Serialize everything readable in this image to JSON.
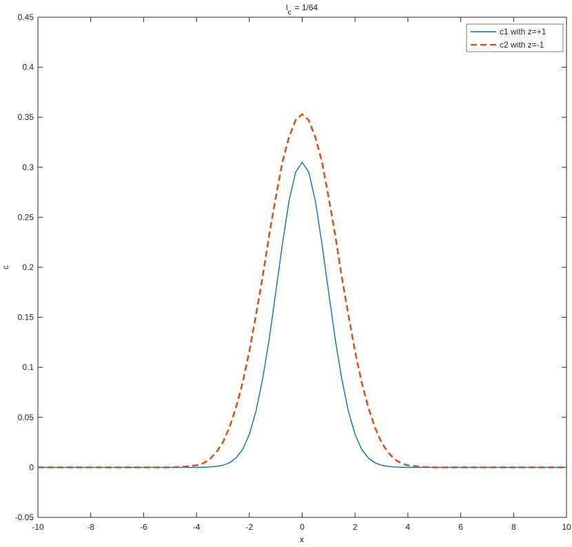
{
  "chart_data": {
    "type": "line",
    "title": {
      "text": "l",
      "subscript": "c",
      "suffix": "= 1/64"
    },
    "x_label": "x",
    "y_label": "c",
    "x": [
      -10,
      -9,
      -8,
      -7,
      -6,
      -5,
      -4.5,
      -4,
      -3.75,
      -3.5,
      -3.25,
      -3,
      -2.75,
      -2.5,
      -2.25,
      -2,
      -1.75,
      -1.5,
      -1.25,
      -1,
      -0.75,
      -0.5,
      -0.25,
      0,
      0.25,
      0.5,
      0.75,
      1,
      1.25,
      1.5,
      1.75,
      2,
      2.25,
      2.5,
      2.75,
      3,
      3.25,
      3.5,
      3.75,
      4,
      4.5,
      5,
      6,
      7,
      8,
      9,
      10
    ],
    "series": [
      {
        "name": "c1 with z=+1",
        "color": "#0072bd",
        "dash": "solid",
        "values": [
          0,
          0,
          0,
          0,
          0,
          0,
          0,
          0,
          0.0001,
          0.0004,
          0.001,
          0.002,
          0.0046,
          0.0095,
          0.018,
          0.033,
          0.056,
          0.088,
          0.128,
          0.175,
          0.223,
          0.266,
          0.295,
          0.305,
          0.295,
          0.266,
          0.223,
          0.175,
          0.128,
          0.088,
          0.056,
          0.033,
          0.018,
          0.0095,
          0.0046,
          0.002,
          0.001,
          0.0004,
          0.0001,
          0,
          0,
          0,
          0,
          0,
          0,
          0,
          0
        ]
      },
      {
        "name": "c2 with z=-1",
        "color": "#d95319",
        "dash": "dashed",
        "values": [
          0,
          0,
          0,
          0,
          0,
          0,
          0.0005,
          0.002,
          0.004,
          0.008,
          0.015,
          0.025,
          0.04,
          0.06,
          0.085,
          0.116,
          0.152,
          0.19,
          0.232,
          0.27,
          0.305,
          0.33,
          0.347,
          0.353,
          0.347,
          0.33,
          0.305,
          0.27,
          0.232,
          0.19,
          0.152,
          0.116,
          0.085,
          0.06,
          0.04,
          0.025,
          0.015,
          0.008,
          0.004,
          0.002,
          0.0005,
          0,
          0,
          0,
          0,
          0,
          0
        ]
      }
    ],
    "xlim": [
      -10,
      10
    ],
    "xticks": [
      -10,
      -8,
      -6,
      -4,
      -2,
      0,
      2,
      4,
      6,
      8,
      10
    ],
    "ylim": [
      -0.05,
      0.45
    ],
    "yticks": [
      -0.05,
      0,
      0.05,
      0.1,
      0.15,
      0.2,
      0.25,
      0.3,
      0.35,
      0.4,
      0.45
    ],
    "grid": false,
    "legend": "top-right"
  }
}
